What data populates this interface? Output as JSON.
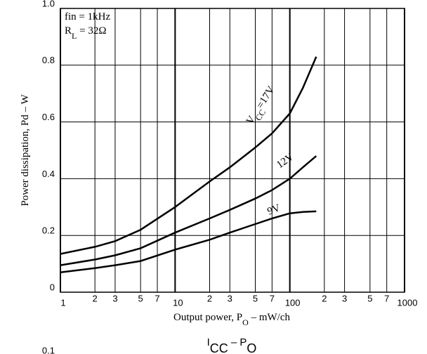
{
  "chart_data": {
    "type": "line",
    "x_label_parts": [
      "Output power, P",
      "O",
      "  –  mW/ch"
    ],
    "y_label": "Power dissipation, Pd  –  W",
    "annotations": [
      [
        "fin = 1kHz"
      ],
      [
        "R",
        "L",
        " = 32Ω"
      ]
    ],
    "log_x": true,
    "grid": true,
    "xlim": [
      1,
      1000
    ],
    "ylim": [
      0,
      1.0
    ],
    "xticks": [
      1,
      {
        "value": 2,
        "label": "2"
      },
      {
        "value": 3,
        "label": "3"
      },
      {
        "value": 5,
        "label": "5"
      },
      {
        "value": 7,
        "label": "7"
      },
      10,
      {
        "value": 20,
        "label": "2"
      },
      {
        "value": 30,
        "label": "3"
      },
      {
        "value": 50,
        "label": "5"
      },
      {
        "value": 70,
        "label": "7"
      },
      100,
      {
        "value": 200,
        "label": "2"
      },
      {
        "value": 300,
        "label": "3"
      },
      {
        "value": 500,
        "label": "5"
      },
      {
        "value": 700,
        "label": "7"
      },
      1000
    ],
    "yticks": [
      0,
      0.2,
      0.4,
      0.6,
      0.8,
      {
        "value": 1.0,
        "label": "1.0"
      }
    ],
    "series": [
      {
        "name_parts": [
          "V",
          "CC",
          "=17V"
        ],
        "color": "#000000",
        "x": [
          1,
          2,
          3,
          5,
          10,
          20,
          30,
          50,
          70,
          100,
          130,
          170
        ],
        "values": [
          0.135,
          0.16,
          0.18,
          0.22,
          0.3,
          0.39,
          0.44,
          0.51,
          0.56,
          0.63,
          0.72,
          0.83
        ]
      },
      {
        "name_parts": [
          "12V"
        ],
        "color": "#000000",
        "x": [
          1,
          2,
          3,
          5,
          10,
          20,
          30,
          50,
          70,
          100,
          130,
          170
        ],
        "values": [
          0.095,
          0.115,
          0.13,
          0.155,
          0.21,
          0.26,
          0.29,
          0.33,
          0.36,
          0.4,
          0.44,
          0.48
        ]
      },
      {
        "name_parts": [
          "9V"
        ],
        "color": "#000000",
        "x": [
          1,
          2,
          3,
          5,
          10,
          20,
          30,
          50,
          70,
          100,
          130,
          170
        ],
        "values": [
          0.07,
          0.085,
          0.095,
          0.11,
          0.15,
          0.185,
          0.21,
          0.24,
          0.26,
          0.278,
          0.283,
          0.285
        ]
      }
    ]
  },
  "next_chart": {
    "title_parts": [
      "I",
      "CC",
      " – P",
      "O"
    ],
    "top_tick": "0.1"
  }
}
